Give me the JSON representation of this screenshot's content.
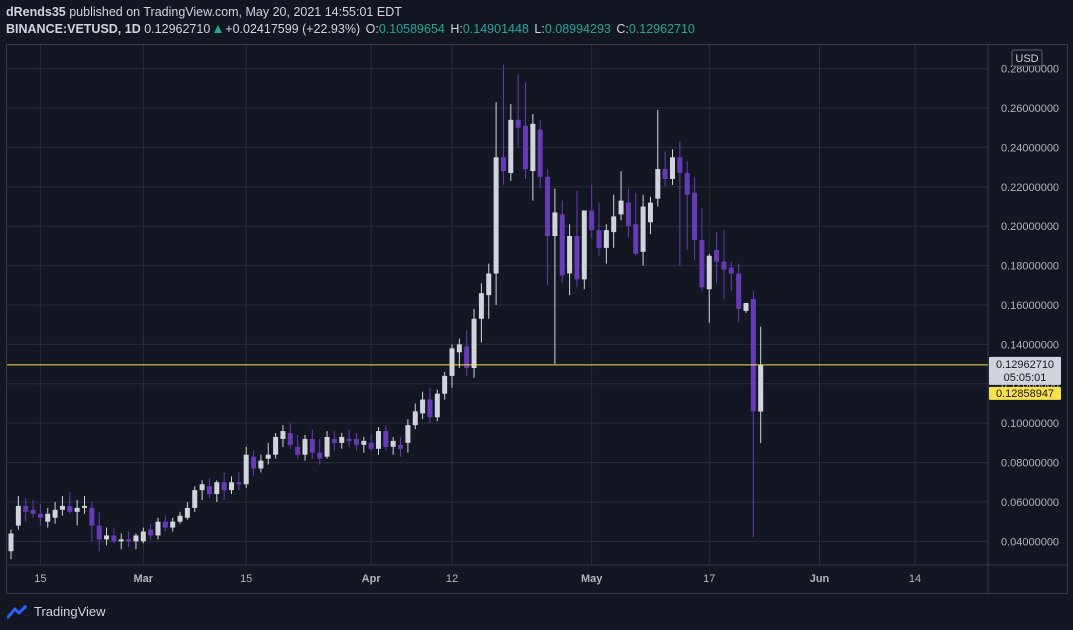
{
  "header": {
    "author": "dRends35",
    "published_text": "published on TradingView.com, May 20, 2021 14:55:01 EDT",
    "symbol": "BINANCE:VETUSD, 1D",
    "last": "0.12962710",
    "change": "+0.02417599 (+22.93%)",
    "o_label": "O:",
    "o_value": "0.10589654",
    "h_label": "H:",
    "h_value": "0.14901448",
    "l_label": "L:",
    "l_value": "0.08994293",
    "c_label": "C:",
    "c_value": "0.12962710"
  },
  "footer": {
    "brand": "TradingView"
  },
  "colors": {
    "background": "#131722",
    "grid": "#2a2e39",
    "up_candle": "#d1d4dc",
    "down_candle": "#673ab7",
    "price_line": "#f7e14d",
    "text": "#b2b5be"
  },
  "chart_data": {
    "type": "candlestick",
    "currency": "USD",
    "ylim": [
      0.028,
      0.292
    ],
    "y_ticks": [
      "0.04000000",
      "0.06000000",
      "0.08000000",
      "0.10000000",
      "0.12000000",
      "0.14000000",
      "0.16000000",
      "0.18000000",
      "0.20000000",
      "0.22000000",
      "0.24000000",
      "0.26000000",
      "0.28000000"
    ],
    "x_ticks": [
      {
        "label": "15",
        "date": "2021-02-15"
      },
      {
        "label": "Mar",
        "date": "2021-03-01"
      },
      {
        "label": "15",
        "date": "2021-03-15"
      },
      {
        "label": "Apr",
        "date": "2021-04-01"
      },
      {
        "label": "12",
        "date": "2021-04-12"
      },
      {
        "label": "May",
        "date": "2021-05-01"
      },
      {
        "label": "17",
        "date": "2021-05-17"
      },
      {
        "label": "Jun",
        "date": "2021-06-01"
      },
      {
        "label": "14",
        "date": "2021-06-14"
      }
    ],
    "x_range": [
      "2021-02-11",
      "2021-06-22"
    ],
    "last_price": {
      "value": 0.1296271,
      "label": "0.12962710",
      "countdown": "05:05:01"
    },
    "secondary_price": {
      "value": 0.12858947,
      "label": "0.12858947"
    },
    "candles": [
      {
        "d": "2021-02-11",
        "o": 0.035,
        "h": 0.046,
        "l": 0.031,
        "c": 0.044
      },
      {
        "d": "2021-02-12",
        "o": 0.048,
        "h": 0.063,
        "l": 0.046,
        "c": 0.058
      },
      {
        "d": "2021-02-13",
        "o": 0.058,
        "h": 0.062,
        "l": 0.05,
        "c": 0.055
      },
      {
        "d": "2021-02-14",
        "o": 0.056,
        "h": 0.061,
        "l": 0.052,
        "c": 0.054
      },
      {
        "d": "2021-02-15",
        "o": 0.054,
        "h": 0.059,
        "l": 0.048,
        "c": 0.052
      },
      {
        "d": "2021-02-16",
        "o": 0.05,
        "h": 0.057,
        "l": 0.047,
        "c": 0.054
      },
      {
        "d": "2021-02-17",
        "o": 0.052,
        "h": 0.06,
        "l": 0.049,
        "c": 0.056
      },
      {
        "d": "2021-02-18",
        "o": 0.056,
        "h": 0.063,
        "l": 0.053,
        "c": 0.058
      },
      {
        "d": "2021-02-19",
        "o": 0.058,
        "h": 0.065,
        "l": 0.054,
        "c": 0.055
      },
      {
        "d": "2021-02-20",
        "o": 0.055,
        "h": 0.061,
        "l": 0.048,
        "c": 0.057
      },
      {
        "d": "2021-02-21",
        "o": 0.057,
        "h": 0.063,
        "l": 0.054,
        "c": 0.058
      },
      {
        "d": "2021-02-22",
        "o": 0.057,
        "h": 0.06,
        "l": 0.04,
        "c": 0.048
      },
      {
        "d": "2021-02-23",
        "o": 0.048,
        "h": 0.055,
        "l": 0.035,
        "c": 0.041
      },
      {
        "d": "2021-02-24",
        "o": 0.041,
        "h": 0.047,
        "l": 0.038,
        "c": 0.043
      },
      {
        "d": "2021-02-25",
        "o": 0.043,
        "h": 0.047,
        "l": 0.039,
        "c": 0.04
      },
      {
        "d": "2021-02-26",
        "o": 0.04,
        "h": 0.044,
        "l": 0.036,
        "c": 0.041
      },
      {
        "d": "2021-02-27",
        "o": 0.041,
        "h": 0.045,
        "l": 0.037,
        "c": 0.04
      },
      {
        "d": "2021-02-28",
        "o": 0.04,
        "h": 0.044,
        "l": 0.036,
        "c": 0.043
      },
      {
        "d": "2021-03-01",
        "o": 0.04,
        "h": 0.047,
        "l": 0.039,
        "c": 0.045
      },
      {
        "d": "2021-03-02",
        "o": 0.046,
        "h": 0.049,
        "l": 0.041,
        "c": 0.043
      },
      {
        "d": "2021-03-03",
        "o": 0.043,
        "h": 0.052,
        "l": 0.041,
        "c": 0.05
      },
      {
        "d": "2021-03-04",
        "o": 0.05,
        "h": 0.053,
        "l": 0.045,
        "c": 0.047
      },
      {
        "d": "2021-03-05",
        "o": 0.047,
        "h": 0.052,
        "l": 0.045,
        "c": 0.05
      },
      {
        "d": "2021-03-06",
        "o": 0.05,
        "h": 0.055,
        "l": 0.049,
        "c": 0.053
      },
      {
        "d": "2021-03-07",
        "o": 0.052,
        "h": 0.06,
        "l": 0.051,
        "c": 0.057
      },
      {
        "d": "2021-03-08",
        "o": 0.057,
        "h": 0.068,
        "l": 0.055,
        "c": 0.066
      },
      {
        "d": "2021-03-09",
        "o": 0.066,
        "h": 0.071,
        "l": 0.061,
        "c": 0.069
      },
      {
        "d": "2021-03-10",
        "o": 0.068,
        "h": 0.072,
        "l": 0.062,
        "c": 0.064
      },
      {
        "d": "2021-03-11",
        "o": 0.064,
        "h": 0.071,
        "l": 0.06,
        "c": 0.07
      },
      {
        "d": "2021-03-12",
        "o": 0.07,
        "h": 0.075,
        "l": 0.061,
        "c": 0.066
      },
      {
        "d": "2021-03-13",
        "o": 0.066,
        "h": 0.073,
        "l": 0.064,
        "c": 0.07
      },
      {
        "d": "2021-03-14",
        "o": 0.07,
        "h": 0.075,
        "l": 0.066,
        "c": 0.069
      },
      {
        "d": "2021-03-15",
        "o": 0.069,
        "h": 0.088,
        "l": 0.067,
        "c": 0.084
      },
      {
        "d": "2021-03-16",
        "o": 0.083,
        "h": 0.086,
        "l": 0.073,
        "c": 0.077
      },
      {
        "d": "2021-03-17",
        "o": 0.077,
        "h": 0.084,
        "l": 0.075,
        "c": 0.081
      },
      {
        "d": "2021-03-18",
        "o": 0.082,
        "h": 0.09,
        "l": 0.079,
        "c": 0.084
      },
      {
        "d": "2021-03-19",
        "o": 0.084,
        "h": 0.095,
        "l": 0.082,
        "c": 0.093
      },
      {
        "d": "2021-03-20",
        "o": 0.092,
        "h": 0.099,
        "l": 0.088,
        "c": 0.096
      },
      {
        "d": "2021-03-21",
        "o": 0.095,
        "h": 0.1,
        "l": 0.087,
        "c": 0.089
      },
      {
        "d": "2021-03-22",
        "o": 0.088,
        "h": 0.094,
        "l": 0.082,
        "c": 0.084
      },
      {
        "d": "2021-03-23",
        "o": 0.084,
        "h": 0.094,
        "l": 0.081,
        "c": 0.092
      },
      {
        "d": "2021-03-24",
        "o": 0.092,
        "h": 0.097,
        "l": 0.082,
        "c": 0.085
      },
      {
        "d": "2021-03-25",
        "o": 0.085,
        "h": 0.092,
        "l": 0.079,
        "c": 0.082
      },
      {
        "d": "2021-03-26",
        "o": 0.083,
        "h": 0.096,
        "l": 0.082,
        "c": 0.093
      },
      {
        "d": "2021-03-27",
        "o": 0.092,
        "h": 0.096,
        "l": 0.086,
        "c": 0.09
      },
      {
        "d": "2021-03-28",
        "o": 0.09,
        "h": 0.095,
        "l": 0.087,
        "c": 0.093
      },
      {
        "d": "2021-03-29",
        "o": 0.092,
        "h": 0.097,
        "l": 0.088,
        "c": 0.091
      },
      {
        "d": "2021-03-30",
        "o": 0.092,
        "h": 0.095,
        "l": 0.086,
        "c": 0.089
      },
      {
        "d": "2021-03-31",
        "o": 0.089,
        "h": 0.093,
        "l": 0.085,
        "c": 0.091
      },
      {
        "d": "2021-04-01",
        "o": 0.09,
        "h": 0.094,
        "l": 0.086,
        "c": 0.087
      },
      {
        "d": "2021-04-02",
        "o": 0.087,
        "h": 0.098,
        "l": 0.084,
        "c": 0.096
      },
      {
        "d": "2021-04-03",
        "o": 0.096,
        "h": 0.099,
        "l": 0.086,
        "c": 0.088
      },
      {
        "d": "2021-04-04",
        "o": 0.088,
        "h": 0.093,
        "l": 0.084,
        "c": 0.091
      },
      {
        "d": "2021-04-05",
        "o": 0.089,
        "h": 0.093,
        "l": 0.083,
        "c": 0.087
      },
      {
        "d": "2021-04-06",
        "o": 0.09,
        "h": 0.102,
        "l": 0.085,
        "c": 0.099
      },
      {
        "d": "2021-04-07",
        "o": 0.099,
        "h": 0.11,
        "l": 0.097,
        "c": 0.106
      },
      {
        "d": "2021-04-08",
        "o": 0.105,
        "h": 0.116,
        "l": 0.102,
        "c": 0.112
      },
      {
        "d": "2021-04-09",
        "o": 0.112,
        "h": 0.118,
        "l": 0.1,
        "c": 0.103
      },
      {
        "d": "2021-04-10",
        "o": 0.103,
        "h": 0.117,
        "l": 0.101,
        "c": 0.115
      },
      {
        "d": "2021-04-11",
        "o": 0.115,
        "h": 0.126,
        "l": 0.112,
        "c": 0.124
      },
      {
        "d": "2021-04-12",
        "o": 0.124,
        "h": 0.14,
        "l": 0.118,
        "c": 0.138
      },
      {
        "d": "2021-04-13",
        "o": 0.136,
        "h": 0.143,
        "l": 0.128,
        "c": 0.14
      },
      {
        "d": "2021-04-14",
        "o": 0.139,
        "h": 0.147,
        "l": 0.124,
        "c": 0.128
      },
      {
        "d": "2021-04-15",
        "o": 0.128,
        "h": 0.158,
        "l": 0.123,
        "c": 0.153
      },
      {
        "d": "2021-04-16",
        "o": 0.153,
        "h": 0.171,
        "l": 0.141,
        "c": 0.166
      },
      {
        "d": "2021-04-17",
        "o": 0.165,
        "h": 0.181,
        "l": 0.153,
        "c": 0.176
      },
      {
        "d": "2021-04-18",
        "o": 0.176,
        "h": 0.263,
        "l": 0.16,
        "c": 0.235
      },
      {
        "d": "2021-04-19",
        "o": 0.235,
        "h": 0.282,
        "l": 0.221,
        "c": 0.228
      },
      {
        "d": "2021-04-20",
        "o": 0.227,
        "h": 0.262,
        "l": 0.223,
        "c": 0.254
      },
      {
        "d": "2021-04-21",
        "o": 0.254,
        "h": 0.277,
        "l": 0.24,
        "c": 0.25
      },
      {
        "d": "2021-04-22",
        "o": 0.251,
        "h": 0.273,
        "l": 0.224,
        "c": 0.229
      },
      {
        "d": "2021-04-23",
        "o": 0.228,
        "h": 0.257,
        "l": 0.213,
        "c": 0.252
      },
      {
        "d": "2021-04-24",
        "o": 0.249,
        "h": 0.254,
        "l": 0.219,
        "c": 0.225
      },
      {
        "d": "2021-04-25",
        "o": 0.225,
        "h": 0.229,
        "l": 0.17,
        "c": 0.195
      },
      {
        "d": "2021-04-26",
        "o": 0.195,
        "h": 0.219,
        "l": 0.13,
        "c": 0.207
      },
      {
        "d": "2021-04-27",
        "o": 0.206,
        "h": 0.213,
        "l": 0.171,
        "c": 0.175
      },
      {
        "d": "2021-04-28",
        "o": 0.176,
        "h": 0.201,
        "l": 0.165,
        "c": 0.195
      },
      {
        "d": "2021-04-29",
        "o": 0.195,
        "h": 0.218,
        "l": 0.169,
        "c": 0.173
      },
      {
        "d": "2021-04-30",
        "o": 0.173,
        "h": 0.207,
        "l": 0.168,
        "c": 0.208
      },
      {
        "d": "2021-05-01",
        "o": 0.208,
        "h": 0.221,
        "l": 0.194,
        "c": 0.198
      },
      {
        "d": "2021-05-02",
        "o": 0.198,
        "h": 0.212,
        "l": 0.185,
        "c": 0.189
      },
      {
        "d": "2021-05-03",
        "o": 0.189,
        "h": 0.201,
        "l": 0.181,
        "c": 0.198
      },
      {
        "d": "2021-05-04",
        "o": 0.197,
        "h": 0.216,
        "l": 0.189,
        "c": 0.205
      },
      {
        "d": "2021-05-05",
        "o": 0.206,
        "h": 0.228,
        "l": 0.203,
        "c": 0.213
      },
      {
        "d": "2021-05-06",
        "o": 0.212,
        "h": 0.219,
        "l": 0.194,
        "c": 0.2
      },
      {
        "d": "2021-05-07",
        "o": 0.201,
        "h": 0.217,
        "l": 0.185,
        "c": 0.186
      },
      {
        "d": "2021-05-08",
        "o": 0.187,
        "h": 0.216,
        "l": 0.18,
        "c": 0.21
      },
      {
        "d": "2021-05-09",
        "o": 0.202,
        "h": 0.215,
        "l": 0.196,
        "c": 0.212
      },
      {
        "d": "2021-05-10",
        "o": 0.214,
        "h": 0.259,
        "l": 0.21,
        "c": 0.229
      },
      {
        "d": "2021-05-11",
        "o": 0.229,
        "h": 0.238,
        "l": 0.22,
        "c": 0.224
      },
      {
        "d": "2021-05-12",
        "o": 0.224,
        "h": 0.239,
        "l": 0.221,
        "c": 0.235
      },
      {
        "d": "2021-05-13",
        "o": 0.235,
        "h": 0.243,
        "l": 0.18,
        "c": 0.227
      },
      {
        "d": "2021-05-14",
        "o": 0.227,
        "h": 0.233,
        "l": 0.188,
        "c": 0.216
      },
      {
        "d": "2021-05-15",
        "o": 0.217,
        "h": 0.225,
        "l": 0.183,
        "c": 0.193
      },
      {
        "d": "2021-05-16",
        "o": 0.193,
        "h": 0.209,
        "l": 0.167,
        "c": 0.169
      },
      {
        "d": "2021-05-17",
        "o": 0.168,
        "h": 0.186,
        "l": 0.151,
        "c": 0.185
      },
      {
        "d": "2021-05-18",
        "o": 0.188,
        "h": 0.197,
        "l": 0.171,
        "c": 0.182
      },
      {
        "d": "2021-05-19",
        "o": 0.182,
        "h": 0.198,
        "l": 0.163,
        "c": 0.178
      },
      {
        "d": "2021-05-20",
        "o": 0.179,
        "h": 0.182,
        "l": 0.167,
        "c": 0.176
      },
      {
        "d": "2021-05-21",
        "o": 0.176,
        "h": 0.181,
        "l": 0.151,
        "c": 0.158
      },
      {
        "d": "2021-05-22",
        "o": 0.157,
        "h": 0.161,
        "l": 0.156,
        "c": 0.161
      },
      {
        "d": "2021-05-23",
        "o": 0.163,
        "h": 0.167,
        "l": 0.042,
        "c": 0.106
      },
      {
        "d": "2021-05-24",
        "o": 0.1059,
        "h": 0.149,
        "l": 0.0899,
        "c": 0.1296
      }
    ]
  }
}
